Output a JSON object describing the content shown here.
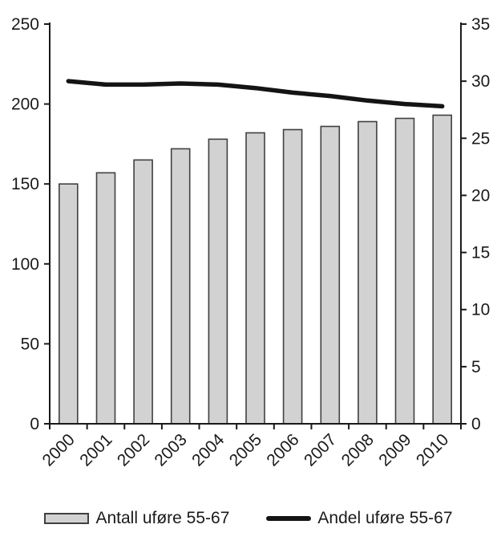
{
  "chart_data": {
    "type": "bar",
    "subtype": "bar+line dual axis",
    "categories": [
      "2000",
      "2001",
      "2002",
      "2003",
      "2004",
      "2005",
      "2006",
      "2007",
      "2008",
      "2009",
      "2010"
    ],
    "series": [
      {
        "name": "Antall uføre 55-67",
        "type": "bar",
        "axis": "left",
        "values": [
          150,
          157,
          165,
          172,
          178,
          182,
          184,
          186,
          189,
          191,
          193
        ]
      },
      {
        "name": "Andel uføre 55-67",
        "type": "line",
        "axis": "right",
        "values": [
          30.0,
          29.7,
          29.7,
          29.8,
          29.7,
          29.4,
          29.0,
          28.7,
          28.3,
          28.0,
          27.8
        ]
      }
    ],
    "title": "",
    "xlabel": "",
    "ylabel_left": "",
    "ylabel_right": "",
    "left_axis": {
      "min": 0,
      "max": 250,
      "step": 50,
      "ticks": [
        "0",
        "50",
        "100",
        "150",
        "200",
        "250"
      ]
    },
    "right_axis": {
      "min": 0,
      "max": 35,
      "step": 5,
      "ticks": [
        "0",
        "5",
        "10",
        "15",
        "20",
        "25",
        "30",
        "35"
      ]
    },
    "grid": "off",
    "legend_position": "bottom",
    "legend": [
      {
        "label": "Antall uføre 55-67",
        "swatch": "bar"
      },
      {
        "label": "Andel uføre 55-67",
        "swatch": "line"
      }
    ],
    "colors": {
      "bar_fill": "#d2d2d2",
      "bar_stroke": "#404040",
      "line": "#141414",
      "axis": "#1a1a1a",
      "text": "#1a1a1a"
    }
  }
}
